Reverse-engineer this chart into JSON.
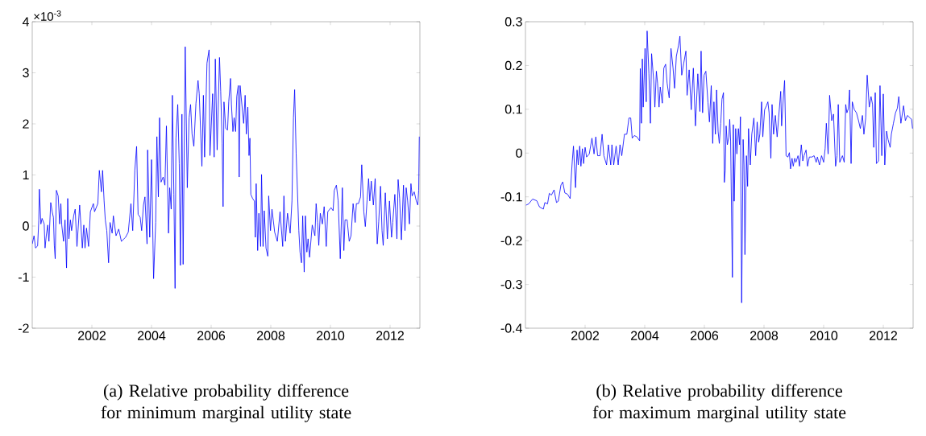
{
  "chart_data": [
    {
      "type": "line",
      "title": "(a) Relative probability difference for minimum marginal utility state",
      "annotations": [
        "×10$^{-3}$"
      ],
      "xlim": [
        2000,
        2013
      ],
      "ylim": [
        -2,
        4
      ],
      "xticks": [
        2002,
        2004,
        2006,
        2008,
        2010,
        2012
      ],
      "yticks": [
        -2,
        -1,
        0,
        1,
        2,
        3,
        4
      ],
      "color": "#0000ff",
      "x": [
        2000.0,
        2000.06,
        2000.11,
        2000.18,
        2000.22,
        2000.24,
        2000.29,
        2000.33,
        2000.4,
        2000.43,
        2000.47,
        2000.52,
        2000.56,
        2000.62,
        2000.67,
        2000.71,
        2000.74,
        2000.77,
        2000.81,
        2000.87,
        2000.92,
        2000.96,
        2000.99,
        2001.05,
        2001.1,
        2001.15,
        2001.19,
        2001.23,
        2001.28,
        2001.32,
        2001.39,
        2001.44,
        2001.5,
        2001.59,
        2001.68,
        2001.73,
        2001.77,
        2001.82,
        2001.89,
        2001.95,
        2002.05,
        2002.09,
        2002.2,
        2002.25,
        2002.32,
        2002.36,
        2002.41,
        2002.45,
        2002.5,
        2002.56,
        2002.61,
        2002.68,
        2002.72,
        2002.81,
        2002.9,
        2002.99,
        2003.13,
        2003.22,
        2003.31,
        2003.37,
        2003.44,
        2003.5,
        2003.55,
        2003.62,
        2003.67,
        2003.73,
        2003.78,
        2003.85,
        2003.87,
        2003.94,
        2004.0,
        2004.07,
        2004.14,
        2004.18,
        2004.23,
        2004.27,
        2004.32,
        2004.39,
        2004.45,
        2004.5,
        2004.57,
        2004.61,
        2004.66,
        2004.7,
        2004.75,
        2004.79,
        2004.82,
        2004.88,
        2004.93,
        2004.97,
        2005.02,
        2005.06,
        2005.13,
        2005.2,
        2005.26,
        2005.31,
        2005.36,
        2005.42,
        2005.49,
        2005.56,
        2005.6,
        2005.69,
        2005.74,
        2005.78,
        2005.86,
        2005.93,
        2005.96,
        2006.05,
        2006.1,
        2006.14,
        2006.2,
        2006.28,
        2006.32,
        2006.37,
        2006.4,
        2006.43,
        2006.49,
        2006.55,
        2006.59,
        2006.65,
        2006.68,
        2006.73,
        2006.77,
        2006.82,
        2006.86,
        2006.91,
        2006.94,
        2006.97,
        2007.03,
        2007.09,
        2007.14,
        2007.18,
        2007.23,
        2007.27,
        2007.3,
        2007.33,
        2007.39,
        2007.45,
        2007.48,
        2007.51,
        2007.56,
        2007.6,
        2007.66,
        2007.69,
        2007.74,
        2007.78,
        2007.84,
        2007.9,
        2007.93,
        2007.99,
        2008.04,
        2008.13,
        2008.22,
        2008.31,
        2008.4,
        2008.44,
        2008.49,
        2008.56,
        2008.65,
        2008.71,
        2008.76,
        2008.8,
        2008.85,
        2008.94,
        2008.98,
        2009.03,
        2009.07,
        2009.12,
        2009.16,
        2009.21,
        2009.25,
        2009.3,
        2009.39,
        2009.48,
        2009.52,
        2009.57,
        2009.61,
        2009.66,
        2009.73,
        2009.79,
        2009.86,
        2009.91,
        2010.02,
        2010.09,
        2010.13,
        2010.2,
        2010.26,
        2010.33,
        2010.4,
        2010.45,
        2010.49,
        2010.56,
        2010.63,
        2010.69,
        2010.76,
        2010.83,
        2010.87,
        2010.94,
        2011.01,
        2011.05,
        2011.12,
        2011.17,
        2011.23,
        2011.28,
        2011.32,
        2011.37,
        2011.44,
        2011.5,
        2011.57,
        2011.62,
        2011.68,
        2011.73,
        2011.77,
        2011.84,
        2011.91,
        2011.98,
        2012.05,
        2012.09,
        2012.16,
        2012.23,
        2012.27,
        2012.32,
        2012.38,
        2012.45,
        2012.5,
        2012.54,
        2012.59,
        2012.65,
        2012.7,
        2012.74,
        2012.81,
        2012.88,
        2012.93,
        2012.96,
        2012.98
      ],
      "values": [
        -0.35,
        -0.19,
        -0.43,
        -0.39,
        0.12,
        0.72,
        0.04,
        0.15,
        0.04,
        -0.43,
        -0.19,
        0.02,
        -0.3,
        0.46,
        0.28,
        0.17,
        -0.38,
        -0.64,
        0.7,
        0.59,
        0.04,
        0.44,
        0.02,
        -0.3,
        0.12,
        -0.82,
        0.54,
        -0.25,
        0.12,
        -0.09,
        0.2,
        0.33,
        -0.4,
        0.41,
        -0.43,
        0.02,
        -0.43,
        -0.04,
        -0.4,
        0.28,
        0.44,
        0.28,
        0.44,
        1.09,
        0.67,
        1.09,
        0.49,
        0.12,
        -0.09,
        -0.72,
        0.07,
        -0.14,
        0.2,
        -0.19,
        -0.06,
        -0.3,
        -0.22,
        -0.12,
        0.44,
        -0.09,
        1.09,
        1.56,
        0.23,
        0.17,
        -0.09,
        0.41,
        0.57,
        -0.35,
        1.49,
        -0.22,
        1.3,
        -1.03,
        0.07,
        1.75,
        0.57,
        2.12,
        0.86,
        0.96,
        0.8,
        1.96,
        -0.14,
        0.75,
        0.33,
        2.56,
        0.62,
        -1.22,
        1.72,
        2.38,
        1.22,
        -0.77,
        2.19,
        -0.75,
        3.51,
        0.75,
        2.12,
        2.38,
        1.8,
        1.56,
        2.4,
        2.85,
        2.59,
        1.17,
        2.56,
        1.35,
        3.19,
        3.45,
        1.38,
        2.59,
        1.35,
        3.27,
        1.49,
        3.3,
        2.64,
        1.62,
        0.38,
        2.43,
        1.91,
        1.88,
        2.43,
        2.89,
        2.38,
        1.85,
        2.12,
        1.85,
        2.54,
        2.75,
        0.96,
        2.75,
        2.38,
        2.01,
        2.56,
        1.8,
        2.33,
        1.38,
        1.72,
        0.62,
        0.54,
        0.49,
        -0.22,
        0.83,
        -0.48,
        0.25,
        -0.4,
        1.01,
        -0.4,
        0.3,
        -0.43,
        -0.59,
        0.59,
        -0.09,
        0.33,
        -0.12,
        -0.3,
        0.28,
        -0.4,
        0.59,
        -0.3,
        0.25,
        -0.14,
        0.49,
        2.12,
        2.67,
        1.43,
        -0.09,
        -0.51,
        -0.72,
        0.2,
        -0.9,
        0.2,
        -0.51,
        -0.25,
        -0.61,
        0.02,
        -0.19,
        0.44,
        0.07,
        -0.38,
        0.25,
        0.04,
        0.38,
        -0.4,
        0.28,
        0.36,
        0.3,
        0.7,
        0.8,
        0.49,
        -0.64,
        0.75,
        -0.48,
        0.12,
        0.12,
        -0.3,
        -0.19,
        0.44,
        0.07,
        0.44,
        0.44,
        0.57,
        1.2,
        0.28,
        -0.01,
        0.51,
        0.93,
        0.49,
        0.88,
        0.41,
        0.93,
        -0.35,
        0.09,
        0.78,
        -0.09,
        -0.38,
        0.65,
        -0.25,
        0.49,
        -0.22,
        0.07,
        0.62,
        -0.25,
        0.91,
        0.54,
        -0.27,
        0.8,
        -0.09,
        0.75,
        0.49,
        0.04,
        0.83,
        0.59,
        0.67,
        0.49,
        0.41,
        0.7,
        1.75
      ]
    },
    {
      "type": "line",
      "title": "(b) Relative probability difference for maximum marginal utility state",
      "xlim": [
        2000,
        2013
      ],
      "ylim": [
        -0.4,
        0.3
      ],
      "xticks": [
        2002,
        2004,
        2006,
        2008,
        2010,
        2012
      ],
      "yticks": [
        -0.4,
        -0.3,
        -0.2,
        -0.1,
        0,
        0.1,
        0.2,
        0.3
      ],
      "color": "#0000ff",
      "x": [
        2000.02,
        2000.11,
        2000.24,
        2000.38,
        2000.47,
        2000.6,
        2000.65,
        2000.74,
        2000.8,
        2000.87,
        2000.96,
        2001.04,
        2001.1,
        2001.19,
        2001.25,
        2001.32,
        2001.41,
        2001.5,
        2001.52,
        2001.57,
        2001.61,
        2001.68,
        2001.73,
        2001.77,
        2001.82,
        2001.86,
        2001.91,
        2001.95,
        2002.0,
        2002.05,
        2002.14,
        2002.23,
        2002.3,
        2002.36,
        2002.42,
        2002.5,
        2002.57,
        2002.63,
        2002.72,
        2002.78,
        2002.86,
        2002.9,
        2002.96,
        2003.04,
        2003.11,
        2003.17,
        2003.23,
        2003.32,
        2003.4,
        2003.47,
        2003.53,
        2003.58,
        2003.65,
        2003.74,
        2003.83,
        2003.85,
        2003.89,
        2003.92,
        2003.95,
        2004.01,
        2004.05,
        2004.08,
        2004.14,
        2004.19,
        2004.23,
        2004.3,
        2004.34,
        2004.39,
        2004.43,
        2004.48,
        2004.52,
        2004.59,
        2004.64,
        2004.7,
        2004.75,
        2004.82,
        2004.88,
        2004.95,
        2005.0,
        2005.06,
        2005.13,
        2005.18,
        2005.24,
        2005.31,
        2005.38,
        2005.42,
        2005.49,
        2005.56,
        2005.63,
        2005.7,
        2005.78,
        2005.85,
        2005.89,
        2005.94,
        2005.99,
        2006.05,
        2006.12,
        2006.17,
        2006.23,
        2006.28,
        2006.32,
        2006.37,
        2006.41,
        2006.46,
        2006.5,
        2006.55,
        2006.59,
        2006.64,
        2006.67,
        2006.7,
        2006.73,
        2006.77,
        2006.82,
        2006.85,
        2006.88,
        2006.94,
        2006.97,
        2007.0,
        2007.05,
        2007.09,
        2007.14,
        2007.18,
        2007.21,
        2007.25,
        2007.3,
        2007.33,
        2007.36,
        2007.41,
        2007.45,
        2007.48,
        2007.54,
        2007.59,
        2007.66,
        2007.72,
        2007.77,
        2007.82,
        2007.86,
        2007.92,
        2007.96,
        2008.02,
        2008.08,
        2008.13,
        2008.17,
        2008.23,
        2008.27,
        2008.32,
        2008.38,
        2008.44,
        2008.49,
        2008.56,
        2008.59,
        2008.65,
        2008.69,
        2008.74,
        2008.8,
        2008.85,
        2008.89,
        2008.94,
        2008.98,
        2009.03,
        2009.07,
        2009.14,
        2009.19,
        2009.25,
        2009.3,
        2009.34,
        2009.41,
        2009.46,
        2009.52,
        2009.61,
        2009.68,
        2009.75,
        2009.79,
        2009.86,
        2009.93,
        2010.0,
        2010.05,
        2010.09,
        2010.15,
        2010.2,
        2010.27,
        2010.33,
        2010.4,
        2010.45,
        2010.49,
        2010.54,
        2010.63,
        2010.69,
        2010.74,
        2010.78,
        2010.83,
        2010.87,
        2010.92,
        2010.96,
        2011.03,
        2011.1,
        2011.17,
        2011.23,
        2011.3,
        2011.35,
        2011.41,
        2011.46,
        2011.53,
        2011.59,
        2011.64,
        2011.68,
        2011.73,
        2011.77,
        2011.84,
        2011.89,
        2011.95,
        2012.0,
        2012.05,
        2012.11,
        2012.16,
        2012.23,
        2012.27,
        2012.34,
        2012.41,
        2012.47,
        2012.52,
        2012.59,
        2012.68,
        2012.74,
        2012.81,
        2012.9,
        2012.95,
        2012.98
      ],
      "values": [
        -0.119,
        -0.116,
        -0.105,
        -0.109,
        -0.123,
        -0.128,
        -0.113,
        -0.116,
        -0.092,
        -0.096,
        -0.084,
        -0.113,
        -0.11,
        -0.073,
        -0.066,
        -0.091,
        -0.094,
        -0.104,
        -0.073,
        -0.018,
        0.016,
        -0.079,
        0.007,
        -0.027,
        0.016,
        -0.03,
        0.01,
        -0.024,
        0.013,
        -0.009,
        -0.002,
        0.034,
        -0.002,
        0.037,
        -0.006,
        -0.006,
        0.043,
        -0.006,
        -0.027,
        0.019,
        -0.027,
        0.019,
        -0.027,
        0.016,
        -0.027,
        0.019,
        -0.006,
        0.043,
        0.043,
        0.08,
        0.08,
        0.034,
        0.04,
        0.037,
        0.028,
        0.193,
        0.068,
        0.215,
        0.105,
        0.239,
        0.117,
        0.279,
        0.181,
        0.068,
        0.227,
        0.166,
        0.105,
        0.187,
        0.16,
        0.105,
        0.151,
        0.114,
        0.194,
        0.203,
        0.16,
        0.126,
        0.239,
        0.194,
        0.148,
        0.221,
        0.245,
        0.267,
        0.178,
        0.206,
        0.233,
        0.132,
        0.19,
        0.099,
        0.194,
        0.062,
        0.181,
        0.095,
        0.233,
        0.092,
        0.178,
        0.187,
        0.116,
        0.071,
        0.154,
        0.022,
        0.117,
        0.043,
        0.144,
        0.05,
        0.022,
        0.068,
        0.123,
        0.138,
        -0.067,
        -0.039,
        0.062,
        0.019,
        0.037,
        0.077,
        0.028,
        -0.284,
        0.065,
        -0.11,
        0.056,
        -0.002,
        0.056,
        0.019,
        0.083,
        -0.342,
        0.031,
        -0.027,
        -0.232,
        -0.006,
        -0.076,
        0.056,
        -0.027,
        0.043,
        0.08,
        -0.006,
        0.071,
        0.025,
        0.043,
        0.117,
        0.037,
        0.099,
        0.108,
        0.117,
        0.092,
        -0.012,
        0.111,
        0.043,
        0.086,
        0.037,
        0.08,
        0.141,
        0.062,
        0.129,
        0.166,
        -0.006,
        -0.009,
        0.001,
        -0.036,
        -0.012,
        -0.03,
        -0.012,
        -0.021,
        -0.006,
        -0.03,
        0.019,
        -0.018,
        -0.006,
        0.007,
        -0.03,
        -0.009,
        -0.009,
        -0.006,
        -0.021,
        -0.009,
        -0.027,
        -0.006,
        -0.021,
        0.01,
        0.068,
        -0.002,
        0.132,
        0.074,
        0.089,
        -0.03,
        -0.006,
        0.111,
        -0.021,
        -0.006,
        -0.021,
        0.111,
        0.092,
        0.102,
        0.144,
        -0.024,
        0.117,
        0.099,
        0.092,
        0.074,
        0.056,
        0.086,
        0.043,
        0.08,
        0.178,
        0.105,
        0.129,
        0.111,
        0.013,
        0.138,
        -0.024,
        -0.018,
        0.154,
        -0.006,
        0.135,
        -0.027,
        0.05,
        0.031,
        0.013,
        0.043,
        0.068,
        0.092,
        0.102,
        0.129,
        0.068,
        0.108,
        0.074,
        0.086,
        0.08,
        0.077,
        0.056
      ]
    }
  ]
}
